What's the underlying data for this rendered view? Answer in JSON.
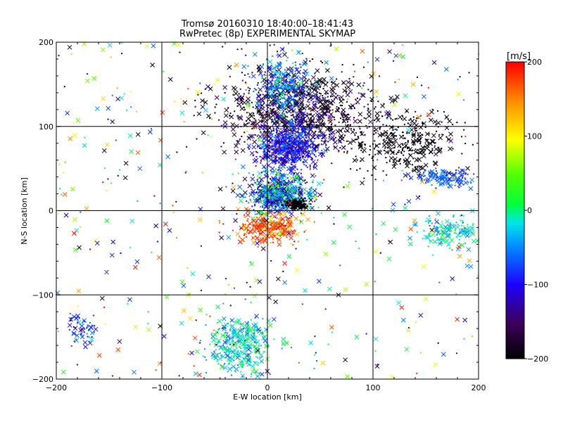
{
  "title_line1": "Tromsø 20160310 18:40:00–18:41:43",
  "title_line2": "RwPretec (8p) EXPERIMENTAL SKYMAP",
  "chart_data": {
    "type": "scatter",
    "title": "Tromsø 20160310 18:40:00–18:41:43 / RwPretec (8p) EXPERIMENTAL SKYMAP",
    "xlabel": "E-W location [km]",
    "ylabel": "N-S location [km]",
    "xlim": [
      -200,
      200
    ],
    "ylim": [
      -200,
      200
    ],
    "xticks": [
      -200,
      -100,
      0,
      100,
      200
    ],
    "yticks": [
      -200,
      -100,
      0,
      100,
      200
    ],
    "xtick_labels": [
      "−200",
      "−100",
      "0",
      "100",
      "200"
    ],
    "ytick_labels": [
      "−200",
      "−100",
      "0",
      "100",
      "200"
    ],
    "grid": true,
    "colorbar": {
      "label": "[m/s]",
      "range": [
        -200,
        200
      ],
      "ticks": [
        200,
        100,
        0,
        -100,
        -200
      ],
      "tick_labels": [
        "200",
        "100",
        "0",
        "−100",
        "−200"
      ],
      "colormap": "rainbow (black→purple→blue→cyan→green→yellow→red)"
    },
    "marker_types": [
      "x",
      "dot"
    ],
    "clusters": [
      {
        "x_center": 30,
        "y_center": 120,
        "x_spread": 60,
        "y_spread": 40,
        "velocity_mean": -180,
        "velocity_spread": 30,
        "note": "dense black/purple region NE"
      },
      {
        "x_center": 130,
        "y_center": 80,
        "x_spread": 45,
        "y_spread": 35,
        "velocity_mean": -195,
        "velocity_spread": 10
      },
      {
        "x_center": 20,
        "y_center": 75,
        "x_spread": 25,
        "y_spread": 25,
        "velocity_mean": -100,
        "velocity_spread": 25,
        "note": "blue cluster"
      },
      {
        "x_center": 15,
        "y_center": 150,
        "x_spread": 20,
        "y_spread": 30,
        "velocity_mean": -60,
        "velocity_spread": 40,
        "note": "cyan band"
      },
      {
        "x_center": 10,
        "y_center": 20,
        "x_spread": 25,
        "y_spread": 20,
        "velocity_mean": -60,
        "velocity_spread": 60,
        "note": "cyan/green near origin"
      },
      {
        "x_center": 28,
        "y_center": 7,
        "x_spread": 8,
        "y_spread": 5,
        "velocity_mean": -200,
        "velocity_spread": 5,
        "note": "dense black core"
      },
      {
        "x_center": 0,
        "y_center": -20,
        "x_spread": 25,
        "y_spread": 15,
        "velocity_mean": 170,
        "velocity_spread": 30,
        "note": "red region below origin"
      },
      {
        "x_center": -25,
        "y_center": -160,
        "x_spread": 25,
        "y_spread": 30,
        "velocity_mean": -20,
        "velocity_spread": 30,
        "note": "green/cyan cluster south"
      },
      {
        "x_center": 170,
        "y_center": 40,
        "x_spread": 25,
        "y_spread": 8,
        "velocity_mean": -70,
        "velocity_spread": 15,
        "note": "cyan/blue band east"
      },
      {
        "x_center": 170,
        "y_center": -25,
        "x_spread": 25,
        "y_spread": 15,
        "velocity_mean": -20,
        "velocity_spread": 25,
        "note": "green/cyan east"
      },
      {
        "x_center": -175,
        "y_center": -140,
        "x_spread": 12,
        "y_spread": 15,
        "velocity_mean": -80,
        "velocity_spread": 30,
        "note": "SW cluster"
      }
    ]
  }
}
